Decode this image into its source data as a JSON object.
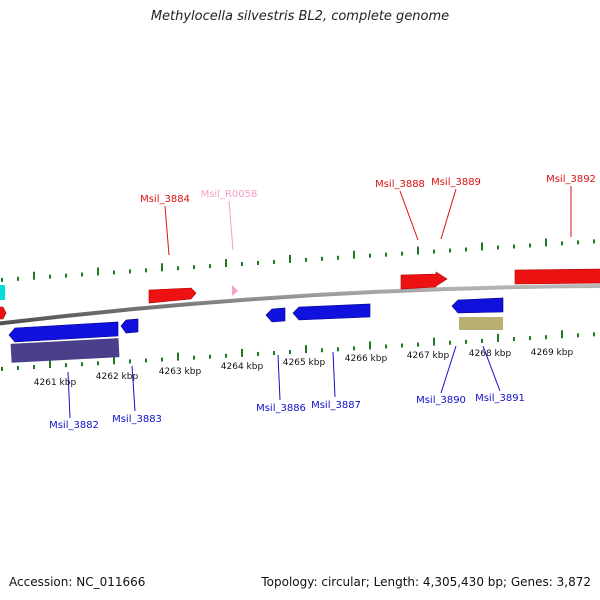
{
  "title": "Methylocella silvestris BL2, complete genome",
  "footer": {
    "accession": "Accession: NC_011666",
    "summary": "Topology: circular; Length: 4,305,430 bp; Genes: 3,872"
  },
  "colors": {
    "forward_gene": "#ee1111",
    "reverse_gene": "#1111dd",
    "rna_gene": "#f4a0c8",
    "backbone": "#8a8a8a",
    "ticks": "#227722",
    "dark_feature": "#4a3f8a",
    "khaki_feature": "#b8b070",
    "cyan_feature": "#00dddd"
  },
  "axis_labels": [
    "4261 kbp",
    "4262 kbp",
    "4263 kbp",
    "4264 kbp",
    "4265 kbp",
    "4266 kbp",
    "4267 kbp",
    "4268 kbp",
    "4269 kbp"
  ],
  "top_labels": [
    "Msil_3884",
    "Msil_R0058",
    "Msil_3888",
    "Msil_3889",
    "Msil_3892"
  ],
  "bottom_labels": [
    "Msil_3882",
    "Msil_3883",
    "Msil_3886",
    "Msil_3887",
    "Msil_3890",
    "Msil_3891"
  ]
}
